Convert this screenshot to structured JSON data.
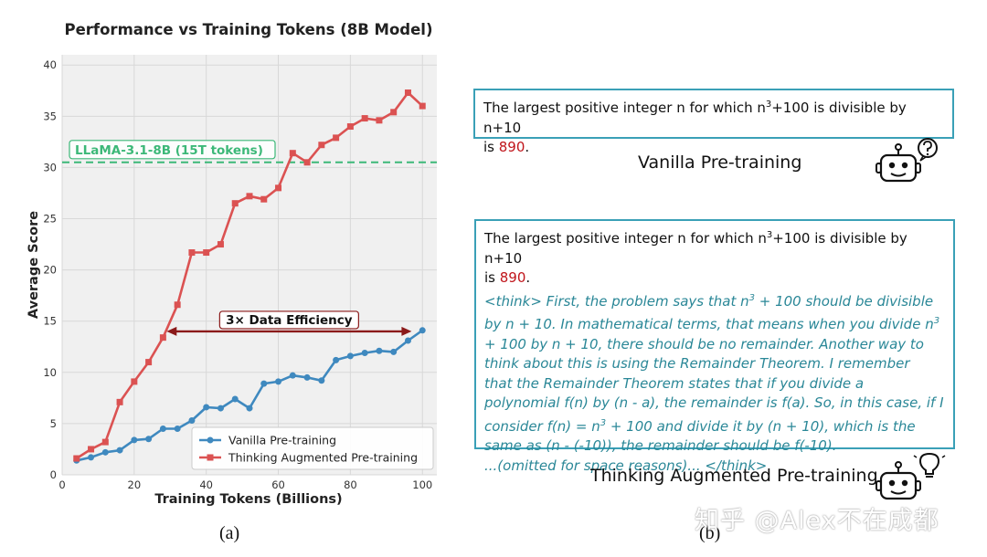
{
  "chart_data": {
    "type": "line",
    "title": "Performance vs Training Tokens (8B Model)",
    "xlabel": "Training Tokens (Billions)",
    "ylabel": "Average Score",
    "xlim": [
      0,
      104
    ],
    "ylim": [
      0,
      41
    ],
    "x_ticks": [
      0,
      20,
      40,
      60,
      80,
      100
    ],
    "y_ticks": [
      0,
      5,
      10,
      15,
      20,
      25,
      30,
      35,
      40
    ],
    "grid": true,
    "legend_position": "bottom-right",
    "series": [
      {
        "name": "Vanilla Pre-training",
        "color": "#3f89bf",
        "marker": "circle",
        "x": [
          4,
          8,
          12,
          16,
          20,
          24,
          28,
          32,
          36,
          40,
          44,
          48,
          52,
          56,
          60,
          64,
          68,
          72,
          76,
          80,
          84,
          88,
          92,
          96,
          100
        ],
        "y": [
          1.4,
          1.7,
          2.2,
          2.4,
          3.4,
          3.5,
          4.5,
          4.5,
          5.3,
          6.6,
          6.5,
          7.4,
          6.5,
          8.9,
          9.1,
          9.7,
          9.5,
          9.2,
          11.2,
          11.6,
          11.9,
          12.1,
          12.0,
          13.1,
          14.1
        ]
      },
      {
        "name": "Thinking Augmented Pre-training",
        "color": "#db5252",
        "marker": "square",
        "x": [
          4,
          8,
          12,
          16,
          20,
          24,
          28,
          32,
          36,
          40,
          44,
          48,
          52,
          56,
          60,
          64,
          68,
          72,
          76,
          80,
          84,
          88,
          92,
          96,
          100
        ],
        "y": [
          1.6,
          2.5,
          3.2,
          7.1,
          9.1,
          11.0,
          13.4,
          16.6,
          21.7,
          21.7,
          22.5,
          26.5,
          27.2,
          26.9,
          28.0,
          31.4,
          30.5,
          32.2,
          32.9,
          34.0,
          34.8,
          34.6,
          35.4,
          37.3,
          36.0
        ]
      }
    ],
    "reference_line": {
      "label": "LLaMA-3.1-8B (15T tokens)",
      "y": 30.5,
      "color": "#3cb878"
    },
    "annotation": {
      "text": "3× Data Efficiency",
      "x_start": 29,
      "x_end": 97,
      "y": 14,
      "color": "#8b1a1a"
    },
    "panel_label": "(a)"
  },
  "right_panel": {
    "vanilla": {
      "line1_prefix": "The largest positive integer n for which n",
      "sup": "3",
      "line1_suffix": "+100 is divisible by n+10",
      "line2_prefix": "is ",
      "answer": "890",
      "line2_suffix": ".",
      "label": "Vanilla Pre-training"
    },
    "thinking": {
      "line1_prefix": "The largest positive integer n for which n",
      "sup": "3",
      "line1_suffix": "+100 is divisible by n+10",
      "line2_prefix": "is ",
      "answer": "890",
      "line2_suffix": ".",
      "think_lines": [
        "<think> First, the problem says that n",
        "by n + 10. In mathematical terms, that means when you divide n",
        "+ 100 by n + 10, there should be no remainder. Another way to",
        "think about this is using the Remainder Theorem. I remember",
        "that the Remainder Theorem states that if you divide a",
        "polynomial f(n) by (n - a), the remainder is f(a). So, in this case, if I",
        "consider f(n) = n",
        "same as (n - (-10)), the remainder should be f(-10).",
        "...(omitted for space reasons)... </think>"
      ],
      "think_line1_suffix": " + 100 should be divisible",
      "think_line7_suffix": " + 100 and divide it by (n + 10), which is the",
      "think_sup": "3",
      "label": "Thinking Augmented Pre-training"
    },
    "panel_label": "(b)",
    "watermark": "知乎 @Alex不在成都",
    "icons": {
      "robot_question": "robot-question-icon",
      "robot_idea": "robot-lightbulb-icon"
    },
    "box_border_color": "#3aa0b7",
    "answer_color": "#c0151b",
    "think_color": "#2a8797"
  }
}
